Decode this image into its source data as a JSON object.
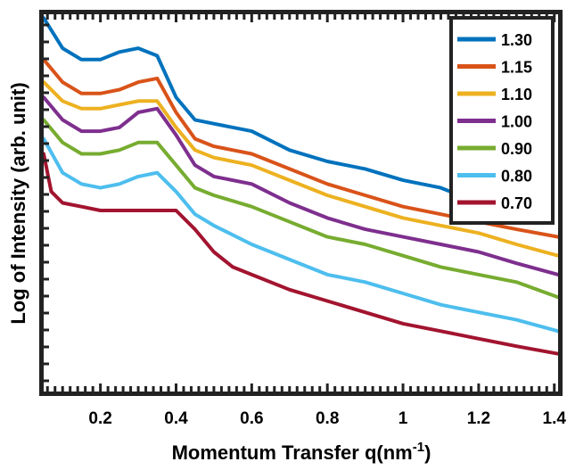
{
  "chart_data": {
    "type": "line",
    "title": "",
    "xlabel": "Momentum Transfer q(nm",
    "xlabel_superscript": "-1",
    "xlabel_suffix": ")",
    "ylabel": "Log of Intensity (arb. unit)",
    "xlim": [
      0.05,
      1.41
    ],
    "y_scale": "log, no tick labels",
    "x_ticks": [
      0.2,
      0.4,
      0.6,
      0.8,
      1,
      1.2,
      1.4
    ],
    "x_tick_labels": [
      "0.2",
      "0.4",
      "0.6",
      "0.8",
      "1",
      "1.2",
      "1.4"
    ],
    "grid": false,
    "legend_position": "top-right",
    "series": [
      {
        "name": "1.30",
        "color": "#0072BD",
        "x": [
          0.05,
          0.1,
          0.15,
          0.2,
          0.25,
          0.3,
          0.35,
          0.4,
          0.45,
          0.5,
          0.6,
          0.7,
          0.8,
          0.9,
          1.0,
          1.1,
          1.2,
          1.3
        ],
        "y": [
          0.99,
          0.91,
          0.88,
          0.88,
          0.9,
          0.91,
          0.89,
          0.78,
          0.72,
          0.71,
          0.69,
          0.64,
          0.61,
          0.59,
          0.56,
          0.54,
          0.5,
          0.49
        ]
      },
      {
        "name": "1.15",
        "color": "#D95319",
        "x": [
          0.05,
          0.1,
          0.15,
          0.2,
          0.25,
          0.3,
          0.35,
          0.4,
          0.45,
          0.5,
          0.6,
          0.7,
          0.8,
          0.9,
          1.0,
          1.1,
          1.2,
          1.3,
          1.41
        ],
        "y": [
          0.88,
          0.82,
          0.79,
          0.79,
          0.8,
          0.82,
          0.83,
          0.74,
          0.67,
          0.65,
          0.63,
          0.59,
          0.55,
          0.52,
          0.49,
          0.47,
          0.45,
          0.43,
          0.41
        ]
      },
      {
        "name": "1.10",
        "color": "#EDB120",
        "x": [
          0.05,
          0.1,
          0.15,
          0.2,
          0.25,
          0.3,
          0.35,
          0.4,
          0.45,
          0.5,
          0.6,
          0.7,
          0.8,
          0.9,
          1.0,
          1.1,
          1.2,
          1.3,
          1.41
        ],
        "y": [
          0.82,
          0.77,
          0.75,
          0.75,
          0.76,
          0.77,
          0.77,
          0.7,
          0.64,
          0.62,
          0.6,
          0.56,
          0.52,
          0.49,
          0.46,
          0.44,
          0.42,
          0.39,
          0.36
        ]
      },
      {
        "name": "1.00",
        "color": "#7E2F8E",
        "x": [
          0.05,
          0.1,
          0.15,
          0.2,
          0.25,
          0.3,
          0.35,
          0.4,
          0.45,
          0.5,
          0.6,
          0.7,
          0.8,
          0.9,
          1.0,
          1.1,
          1.2,
          1.3,
          1.41
        ],
        "y": [
          0.78,
          0.72,
          0.69,
          0.69,
          0.7,
          0.74,
          0.75,
          0.68,
          0.6,
          0.57,
          0.55,
          0.5,
          0.46,
          0.43,
          0.41,
          0.39,
          0.37,
          0.34,
          0.31
        ]
      },
      {
        "name": "0.90",
        "color": "#77AC30",
        "x": [
          0.05,
          0.1,
          0.15,
          0.2,
          0.25,
          0.3,
          0.35,
          0.4,
          0.45,
          0.5,
          0.6,
          0.7,
          0.8,
          0.9,
          1.0,
          1.1,
          1.2,
          1.3,
          1.41
        ],
        "y": [
          0.72,
          0.66,
          0.63,
          0.63,
          0.64,
          0.66,
          0.66,
          0.6,
          0.54,
          0.52,
          0.49,
          0.45,
          0.41,
          0.39,
          0.36,
          0.33,
          0.31,
          0.29,
          0.25
        ]
      },
      {
        "name": "0.80",
        "color": "#4DBEEE",
        "x": [
          0.05,
          0.1,
          0.15,
          0.2,
          0.25,
          0.3,
          0.35,
          0.4,
          0.45,
          0.5,
          0.6,
          0.7,
          0.8,
          0.9,
          1.0,
          1.1,
          1.2,
          1.3,
          1.41
        ],
        "y": [
          0.67,
          0.58,
          0.55,
          0.54,
          0.55,
          0.57,
          0.58,
          0.53,
          0.47,
          0.44,
          0.39,
          0.35,
          0.31,
          0.29,
          0.26,
          0.23,
          0.21,
          0.19,
          0.16
        ]
      },
      {
        "name": "0.70",
        "color": "#A2142F",
        "x": [
          0.05,
          0.07,
          0.1,
          0.15,
          0.2,
          0.25,
          0.3,
          0.35,
          0.4,
          0.45,
          0.5,
          0.55,
          0.6,
          0.7,
          0.8,
          0.9,
          1.0,
          1.1,
          1.2,
          1.3,
          1.41
        ],
        "y": [
          0.63,
          0.53,
          0.5,
          0.49,
          0.48,
          0.48,
          0.48,
          0.48,
          0.48,
          0.43,
          0.37,
          0.33,
          0.31,
          0.27,
          0.24,
          0.21,
          0.18,
          0.16,
          0.14,
          0.12,
          0.1
        ]
      }
    ]
  }
}
